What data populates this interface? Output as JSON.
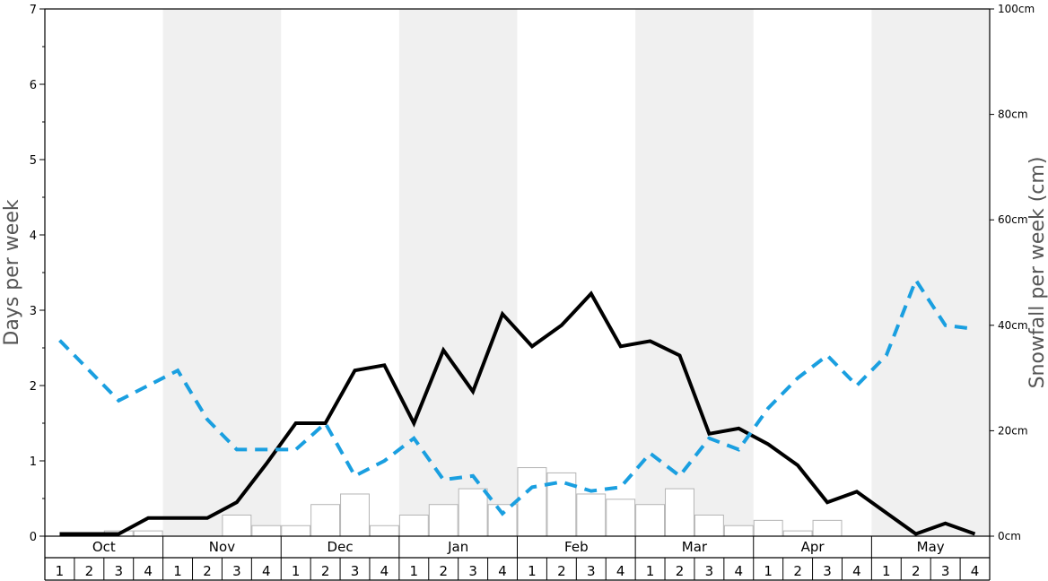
{
  "chart_data": {
    "type": "bar",
    "left_axis": {
      "label": "Days per week",
      "ylim": [
        0,
        7
      ],
      "ticks": [
        "0",
        "1",
        "2",
        "3",
        "4",
        "5",
        "6",
        "7"
      ]
    },
    "right_axis": {
      "label": "Snowfall per week (cm)",
      "ylim": [
        0,
        100
      ],
      "ticks": [
        "0cm",
        "20cm",
        "40cm",
        "60cm",
        "80cm",
        "100cm"
      ]
    },
    "months": [
      "Oct",
      "Nov",
      "Dec",
      "Jan",
      "Feb",
      "Mar",
      "Apr",
      "May"
    ],
    "weeks": [
      "1",
      "2",
      "3",
      "4"
    ],
    "categories": [
      "Oct 1",
      "Oct 2",
      "Oct 3",
      "Oct 4",
      "Nov 1",
      "Nov 2",
      "Nov 3",
      "Nov 4",
      "Dec 1",
      "Dec 2",
      "Dec 3",
      "Dec 4",
      "Jan 1",
      "Jan 2",
      "Jan 3",
      "Jan 4",
      "Feb 1",
      "Feb 2",
      "Feb 3",
      "Feb 4",
      "Mar 1",
      "Mar 2",
      "Mar 3",
      "Mar 4",
      "Apr 1",
      "Apr 2",
      "Apr 3",
      "Apr 4",
      "May 1",
      "May 2",
      "May 3",
      "May 4"
    ],
    "series": [
      {
        "type": "bar",
        "axis": "right",
        "values": [
          0,
          0,
          1,
          1,
          0,
          0,
          4,
          2,
          2,
          6,
          8,
          2,
          4,
          6,
          9,
          6,
          13,
          12,
          8,
          7,
          6,
          9,
          4,
          2,
          3,
          1,
          3,
          0,
          0,
          0,
          0,
          0
        ]
      },
      {
        "type": "line",
        "style": "solid",
        "color": "#000000",
        "axis": "left",
        "values": [
          0.03,
          0.03,
          0.03,
          0.24,
          0.24,
          0.24,
          0.45,
          0.96,
          1.5,
          1.5,
          2.2,
          2.27,
          1.5,
          2.47,
          1.92,
          2.95,
          2.52,
          2.8,
          3.22,
          2.52,
          2.59,
          2.4,
          1.36,
          1.43,
          1.22,
          0.94,
          0.45,
          0.59,
          0.31,
          0.03,
          0.17,
          0.03
        ]
      },
      {
        "type": "line",
        "style": "dashed",
        "color": "#1a9fe0",
        "axis": "left",
        "values": [
          2.6,
          2.2,
          1.8,
          2.0,
          2.2,
          1.55,
          1.15,
          1.15,
          1.15,
          1.5,
          0.8,
          1.0,
          1.3,
          0.75,
          0.8,
          0.3,
          0.65,
          0.72,
          0.6,
          0.65,
          1.1,
          0.8,
          1.3,
          1.15,
          1.7,
          2.1,
          2.4,
          2.0,
          2.4,
          3.4,
          2.8,
          2.75
        ]
      }
    ],
    "shaded_months": [
      "Nov",
      "Jan",
      "Mar",
      "May"
    ],
    "grid": false
  }
}
